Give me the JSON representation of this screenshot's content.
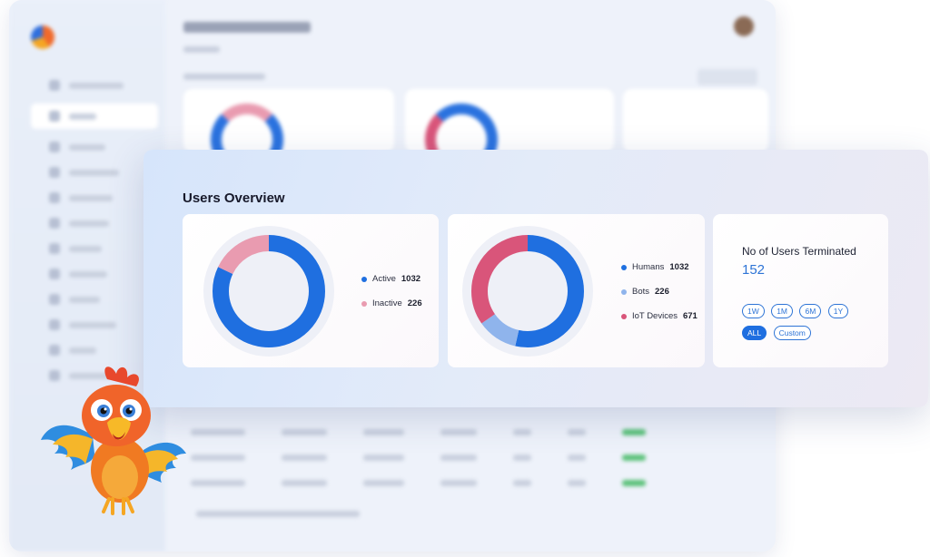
{
  "users_overview": {
    "title": "Users Overview",
    "status_card": {
      "items": [
        {
          "label": "Active",
          "value": "1032",
          "color": "#1f6fe0"
        },
        {
          "label": "Inactive",
          "value": "226",
          "color": "#e99bb0"
        }
      ],
      "share": [
        1032,
        226
      ]
    },
    "type_card": {
      "items": [
        {
          "label": "Humans",
          "value": "1032",
          "color": "#1f6fe0"
        },
        {
          "label": "Bots",
          "value": "226",
          "color": "#8fb4ec"
        },
        {
          "label": "IoT Devices",
          "value": "671",
          "color": "#d9557a"
        }
      ],
      "share": [
        1032,
        226,
        671
      ]
    },
    "terminated_card": {
      "label": "No of Users Terminated",
      "value": "152",
      "filters": [
        {
          "label": "1W",
          "active": false
        },
        {
          "label": "1M",
          "active": false
        },
        {
          "label": "6M",
          "active": false
        },
        {
          "label": "1Y",
          "active": false
        },
        {
          "label": "ALL",
          "active": true
        },
        {
          "label": "Custom",
          "active": false
        }
      ]
    }
  },
  "colors": {
    "accent": "#1f6fe0",
    "link": "#2e74d6",
    "ring_track": "#eef0f7"
  },
  "icons": [
    "mascot-parrot-icon",
    "logo-icon",
    "avatar-icon"
  ]
}
